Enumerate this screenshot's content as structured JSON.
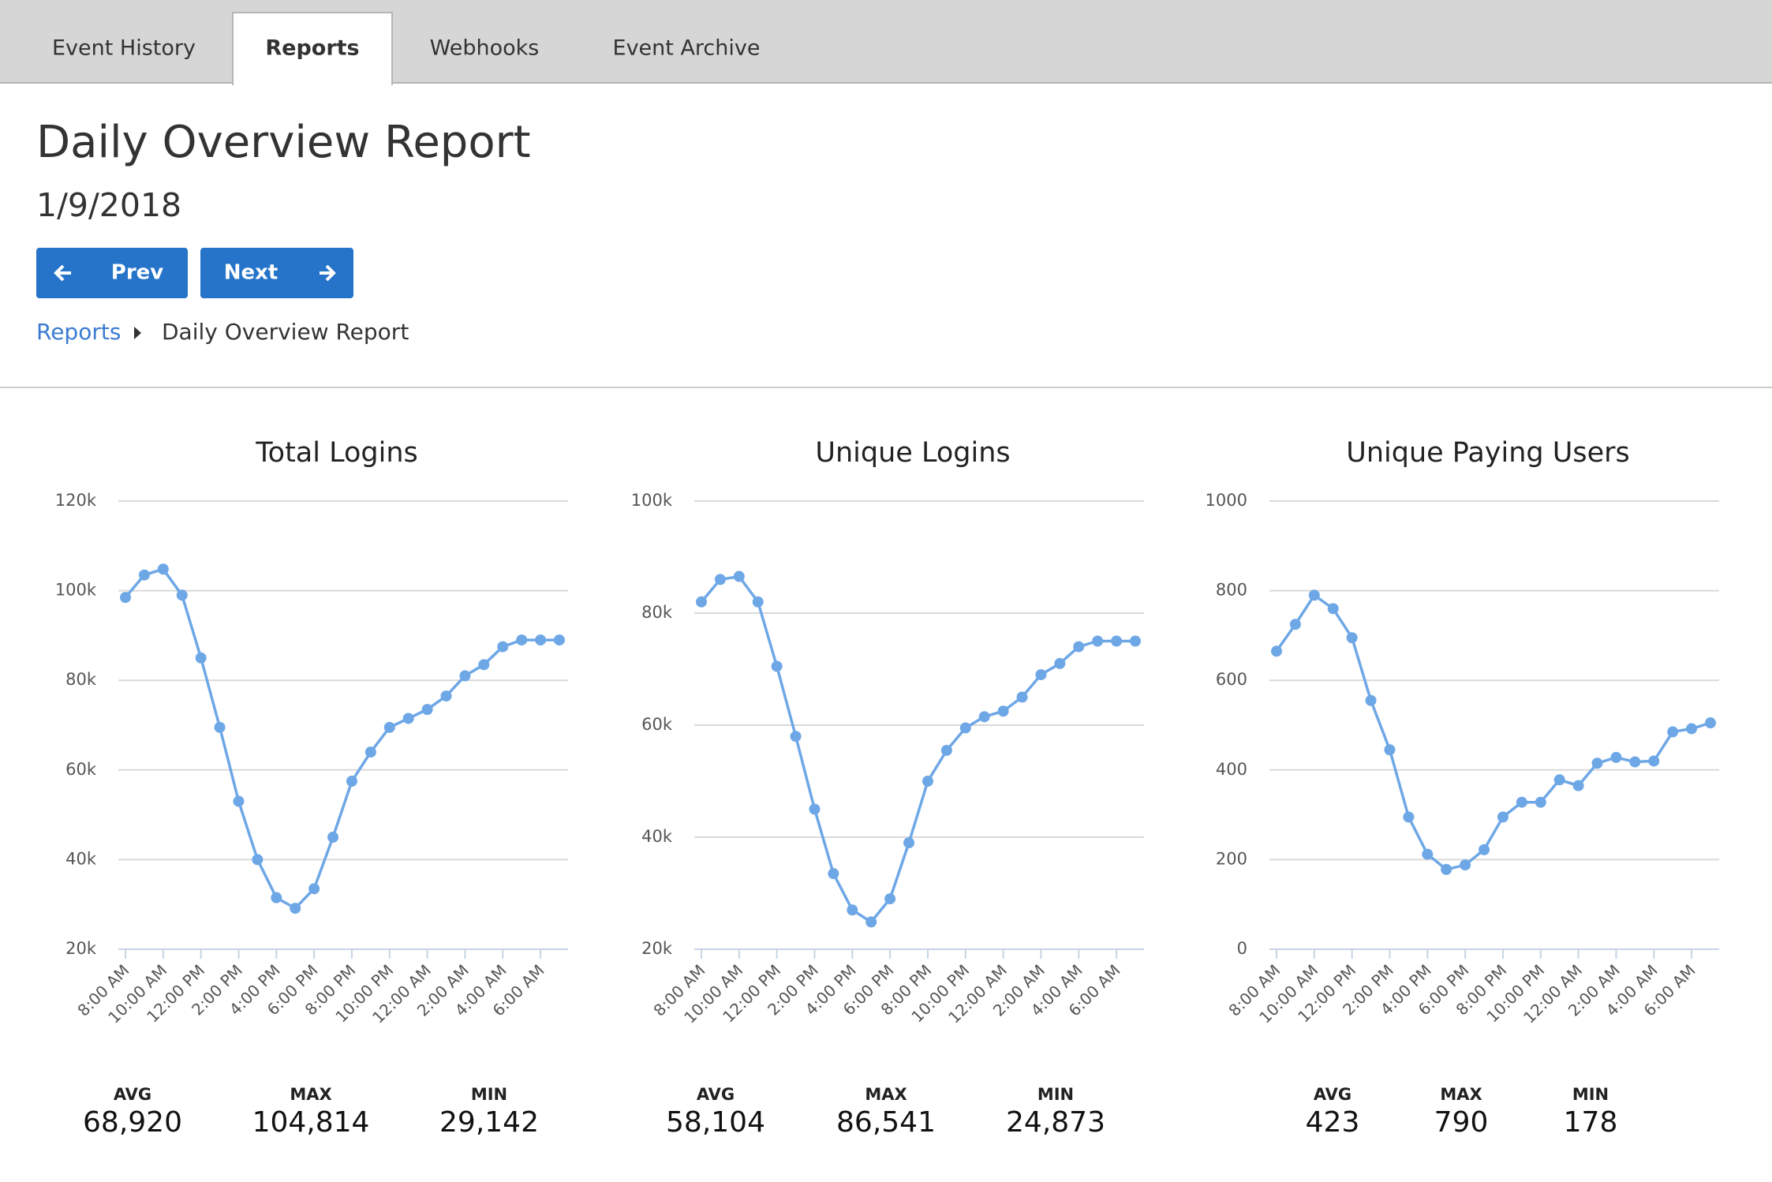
{
  "tabs": [
    "Event History",
    "Reports",
    "Webhooks",
    "Event Archive"
  ],
  "header": {
    "title": "Daily Overview Report",
    "date": "1/9/2018"
  },
  "buttons": {
    "prev": "Prev",
    "next": "Next"
  },
  "breadcrumb": [
    "Reports",
    "Daily Overview Report"
  ],
  "chart_data": [
    {
      "type": "line",
      "title": "Total Logins",
      "color": "#6ea7e6",
      "grid": true,
      "categories": [
        "8:00 AM",
        null,
        "10:00 AM",
        null,
        "12:00 PM",
        null,
        "2:00 PM",
        null,
        "4:00 PM",
        null,
        "6:00 PM",
        null,
        "8:00 PM",
        null,
        "10:00 PM",
        null,
        "12:00 AM",
        null,
        "2:00 AM",
        null,
        "4:00 AM",
        null,
        "6:00 AM",
        null
      ],
      "values": [
        98500,
        103500,
        104814,
        99000,
        85000,
        69500,
        53000,
        40000,
        31500,
        29142,
        33500,
        45000,
        57500,
        64000,
        69500,
        71500,
        73500,
        76500,
        81000,
        83500,
        87500,
        89000,
        89000,
        89000
      ],
      "ylim": [
        20000,
        120000
      ],
      "yticks": [
        {
          "value": 20000,
          "label": "20k"
        },
        {
          "value": 40000,
          "label": "40k"
        },
        {
          "value": 60000,
          "label": "60k"
        },
        {
          "value": 80000,
          "label": "80k"
        },
        {
          "value": 100000,
          "label": "100k"
        },
        {
          "value": 120000,
          "label": "120k"
        }
      ],
      "stats": [
        {
          "label": "AVG",
          "value": "68,920"
        },
        {
          "label": "MAX",
          "value": "104,814"
        },
        {
          "label": "MIN",
          "value": "29,142"
        }
      ]
    },
    {
      "type": "line",
      "title": "Unique Logins",
      "color": "#6ea7e6",
      "grid": true,
      "categories": [
        "8:00 AM",
        null,
        "10:00 AM",
        null,
        "12:00 PM",
        null,
        "2:00 PM",
        null,
        "4:00 PM",
        null,
        "6:00 PM",
        null,
        "8:00 PM",
        null,
        "10:00 PM",
        null,
        "12:00 AM",
        null,
        "2:00 AM",
        null,
        "4:00 AM",
        null,
        "6:00 AM",
        null
      ],
      "values": [
        82000,
        86000,
        86541,
        82000,
        70500,
        58000,
        45000,
        33500,
        27000,
        24873,
        29000,
        39000,
        50000,
        55500,
        59500,
        61500,
        62500,
        65000,
        69000,
        71000,
        74000,
        75000,
        75000,
        75000
      ],
      "ylim": [
        20000,
        100000
      ],
      "yticks": [
        {
          "value": 20000,
          "label": "20k"
        },
        {
          "value": 40000,
          "label": "40k"
        },
        {
          "value": 60000,
          "label": "60k"
        },
        {
          "value": 80000,
          "label": "80k"
        },
        {
          "value": 100000,
          "label": "100k"
        }
      ],
      "stats": [
        {
          "label": "AVG",
          "value": "58,104"
        },
        {
          "label": "MAX",
          "value": "86,541"
        },
        {
          "label": "MIN",
          "value": "24,873"
        }
      ]
    },
    {
      "type": "line",
      "title": "Unique Paying Users",
      "color": "#6ea7e6",
      "grid": true,
      "categories": [
        "8:00 AM",
        null,
        "10:00 AM",
        null,
        "12:00 PM",
        null,
        "2:00 PM",
        null,
        "4:00 PM",
        null,
        "6:00 PM",
        null,
        "8:00 PM",
        null,
        "10:00 PM",
        null,
        "12:00 AM",
        null,
        "2:00 AM",
        null,
        "4:00 AM",
        null,
        "6:00 AM",
        null
      ],
      "values": [
        665,
        725,
        790,
        760,
        695,
        555,
        445,
        295,
        212,
        178,
        188,
        222,
        295,
        328,
        328,
        378,
        365,
        415,
        428,
        418,
        420,
        485,
        492,
        505
      ],
      "ylim": [
        0,
        1000
      ],
      "yticks": [
        0,
        200,
        400,
        600,
        800,
        1000
      ],
      "stats": [
        {
          "label": "AVG",
          "value": "423"
        },
        {
          "label": "MAX",
          "value": "790"
        },
        {
          "label": "MIN",
          "value": "178"
        }
      ]
    }
  ]
}
